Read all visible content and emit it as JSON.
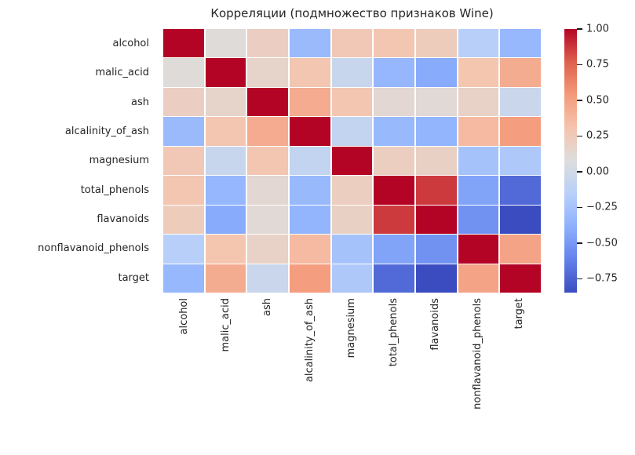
{
  "chart_data": {
    "type": "heatmap",
    "title": "Корреляции (подмножество признаков Wine)",
    "features": [
      "alcohol",
      "malic_acid",
      "ash",
      "alcalinity_of_ash",
      "magnesium",
      "total_phenols",
      "flavanoids",
      "nonflavanoid_phenols",
      "target"
    ],
    "matrix": [
      [
        1.0,
        0.094,
        0.212,
        -0.31,
        0.271,
        0.289,
        0.237,
        -0.156,
        -0.329
      ],
      [
        0.094,
        1.0,
        0.164,
        0.289,
        -0.055,
        -0.335,
        -0.411,
        0.293,
        0.438
      ],
      [
        0.212,
        0.164,
        1.0,
        0.443,
        0.287,
        0.129,
        0.115,
        0.186,
        -0.05
      ],
      [
        -0.31,
        0.289,
        0.443,
        1.0,
        -0.083,
        -0.321,
        -0.351,
        0.362,
        0.518
      ],
      [
        0.271,
        -0.055,
        0.287,
        -0.083,
        1.0,
        0.214,
        0.196,
        -0.256,
        -0.209
      ],
      [
        0.289,
        -0.335,
        0.129,
        -0.321,
        0.214,
        1.0,
        0.865,
        -0.45,
        -0.719
      ],
      [
        0.237,
        -0.411,
        0.115,
        -0.351,
        0.196,
        0.865,
        1.0,
        -0.538,
        -0.847
      ],
      [
        -0.156,
        0.293,
        0.186,
        0.362,
        -0.256,
        -0.45,
        -0.538,
        1.0,
        0.489
      ],
      [
        -0.329,
        0.438,
        -0.05,
        0.518,
        -0.209,
        -0.719,
        -0.847,
        0.489,
        1.0
      ]
    ],
    "vmin": -0.847,
    "vmax": 1.0,
    "colormap": {
      "name": "coolwarm",
      "anchors": [
        [
          0.0,
          "#3b4cc0"
        ],
        [
          0.125,
          "#6282ea"
        ],
        [
          0.25,
          "#8db0fe"
        ],
        [
          0.375,
          "#b8d0f9"
        ],
        [
          0.5,
          "#dddddd"
        ],
        [
          0.625,
          "#f5c4ad"
        ],
        [
          0.75,
          "#f49a7b"
        ],
        [
          0.875,
          "#de604d"
        ],
        [
          1.0,
          "#b40426"
        ]
      ]
    },
    "colorbar": {
      "tick_labels": [
        "1.00",
        "0.75",
        "0.50",
        "0.25",
        "0.00",
        "−0.25",
        "−0.50",
        "−0.75"
      ],
      "tick_values": [
        1.0,
        0.75,
        0.5,
        0.25,
        0.0,
        -0.25,
        -0.5,
        -0.75
      ]
    },
    "grid_line_color": "#ffffff",
    "text_color": "#262626",
    "background": "#ffffff",
    "legend_position": "right",
    "xlabel": "",
    "ylabel": ""
  }
}
